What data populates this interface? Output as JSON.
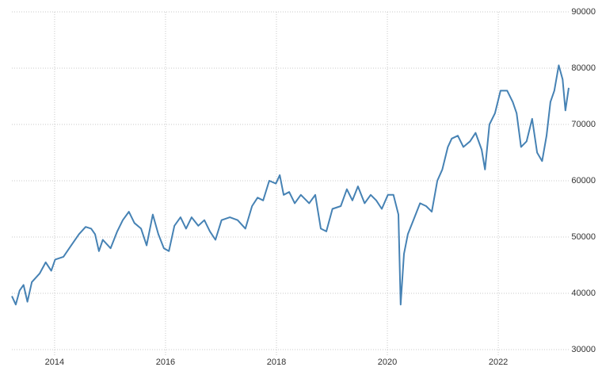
{
  "chart_data": {
    "type": "line",
    "x": [
      2013.23,
      2013.3,
      2013.37,
      2013.44,
      2013.51,
      2013.59,
      2013.73,
      2013.84,
      2013.94,
      2014.01,
      2014.16,
      2014.3,
      2014.44,
      2014.56,
      2014.66,
      2014.73,
      2014.8,
      2014.87,
      2015.01,
      2015.13,
      2015.23,
      2015.34,
      2015.44,
      2015.56,
      2015.66,
      2015.77,
      2015.87,
      2015.97,
      2016.06,
      2016.16,
      2016.27,
      2016.37,
      2016.47,
      2016.59,
      2016.7,
      2016.8,
      2016.9,
      2017.01,
      2017.16,
      2017.3,
      2017.44,
      2017.56,
      2017.66,
      2017.76,
      2017.87,
      2017.99,
      2018.06,
      2018.13,
      2018.23,
      2018.33,
      2018.44,
      2018.59,
      2018.7,
      2018.8,
      2018.9,
      2019.01,
      2019.16,
      2019.27,
      2019.37,
      2019.47,
      2019.59,
      2019.7,
      2019.8,
      2019.9,
      2020.01,
      2020.11,
      2020.2,
      2020.24,
      2020.3,
      2020.37,
      2020.47,
      2020.59,
      2020.7,
      2020.8,
      2020.9,
      2020.99,
      2021.09,
      2021.16,
      2021.27,
      2021.37,
      2021.49,
      2021.59,
      2021.7,
      2021.76,
      2021.84,
      2021.94,
      2022.04,
      2022.16,
      2022.26,
      2022.33,
      2022.41,
      2022.51,
      2022.61,
      2022.7,
      2022.79,
      2022.87,
      2022.94,
      2023.01,
      2023.09,
      2023.16,
      2023.21,
      2023.27
    ],
    "series": [
      {
        "color": "#4682b4",
        "values": [
          39500,
          38000,
          40500,
          41500,
          38500,
          42000,
          43500,
          45500,
          44000,
          46000,
          46500,
          48500,
          50500,
          51800,
          51500,
          50500,
          47500,
          49500,
          48000,
          51000,
          53000,
          54500,
          52500,
          51500,
          48500,
          54000,
          50500,
          48000,
          47500,
          52000,
          53500,
          51500,
          53500,
          52000,
          53000,
          51000,
          49500,
          53000,
          53500,
          53000,
          51500,
          55500,
          57000,
          56500,
          60000,
          59500,
          61000,
          57500,
          58000,
          56000,
          57500,
          56000,
          57500,
          51500,
          51000,
          55000,
          55500,
          58500,
          56500,
          59000,
          56000,
          57500,
          56500,
          55000,
          57500,
          57500,
          54000,
          38000,
          47000,
          50500,
          53000,
          56000,
          55500,
          54500,
          60000,
          62000,
          66000,
          67500,
          68000,
          66000,
          67000,
          68500,
          65500,
          62000,
          70000,
          72000,
          76000,
          76000,
          74000,
          72000,
          66000,
          67000,
          71000,
          65000,
          63500,
          68000,
          74000,
          76000,
          80500,
          78000,
          72500,
          76500
        ]
      }
    ],
    "xlim": [
      2013.23,
      2023.27
    ],
    "xticks": [
      2014,
      2016,
      2018,
      2020,
      2022
    ],
    "ylim": [
      30000,
      90000
    ],
    "yticks": [
      30000,
      40000,
      50000,
      60000,
      70000,
      80000,
      90000
    ],
    "grid": true
  }
}
